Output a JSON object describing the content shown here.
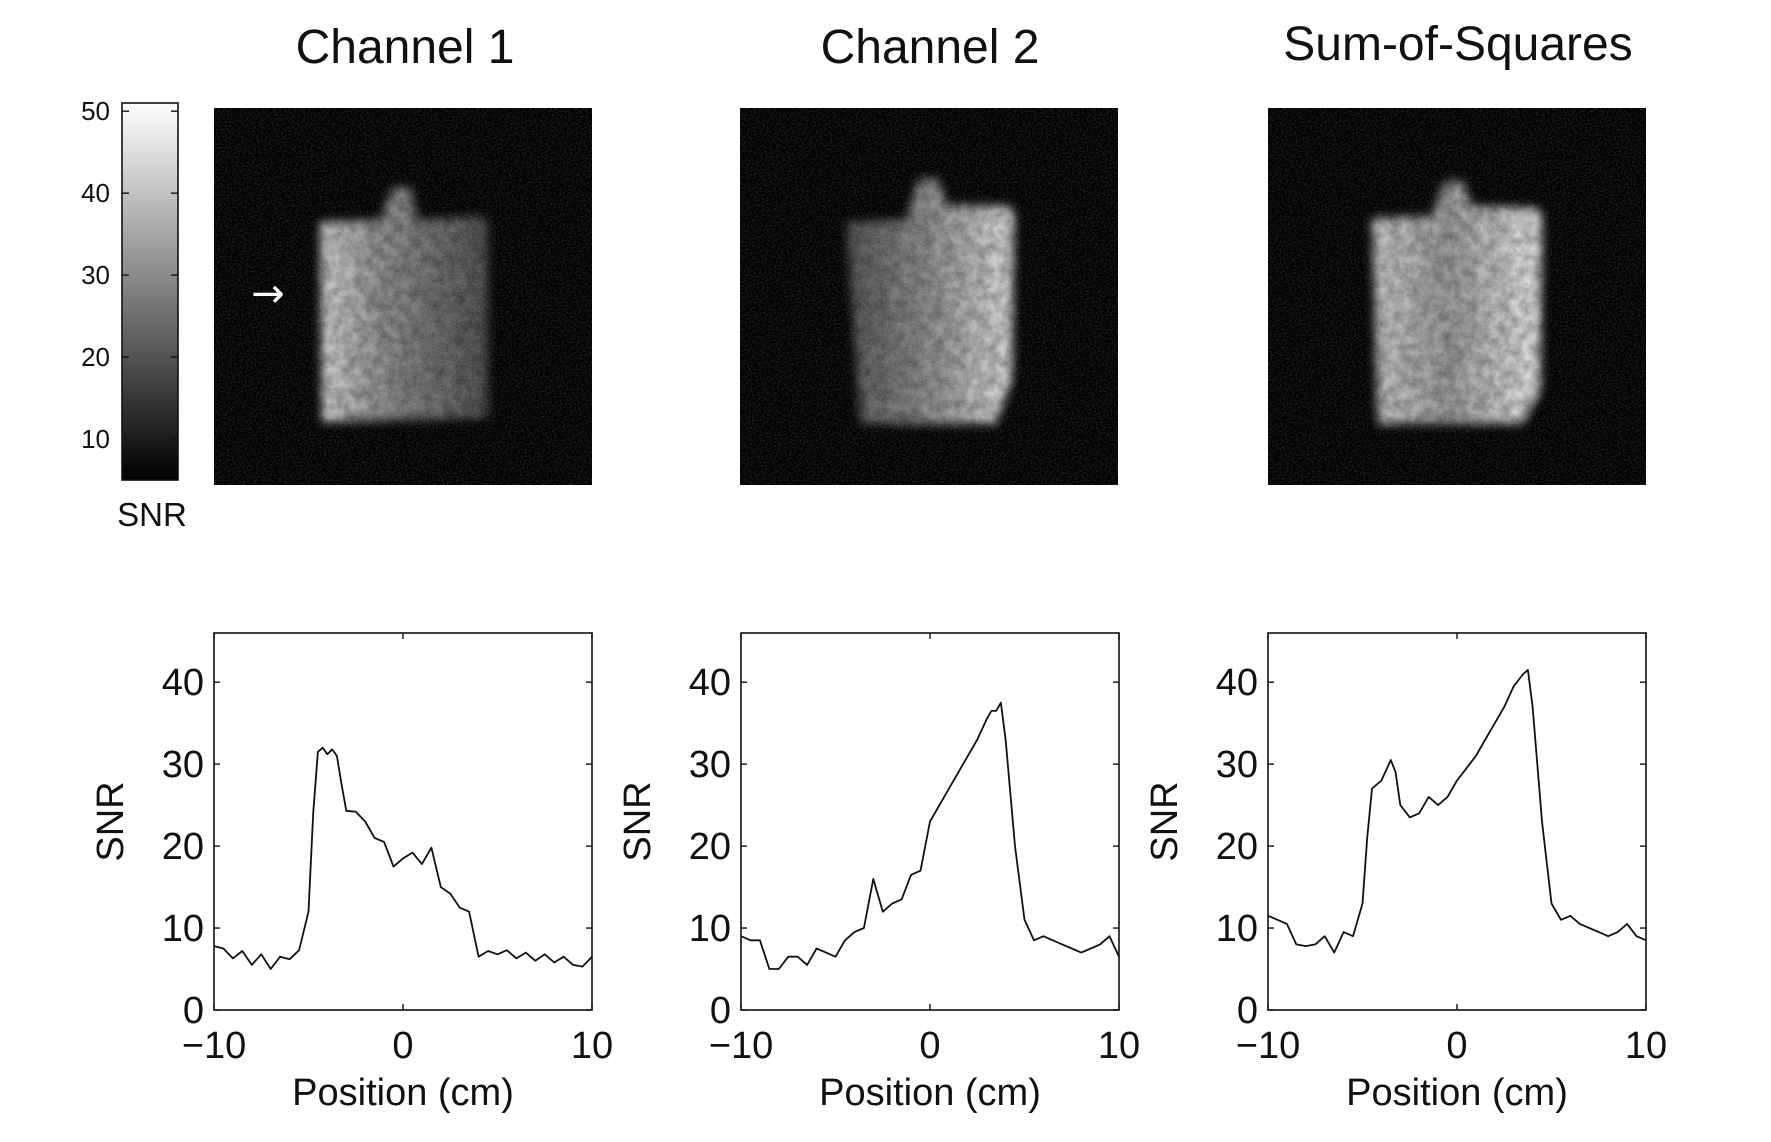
{
  "chart_data": [
    {
      "type": "heatmap",
      "title": "Channel 1",
      "colorbar": {
        "label": "SNR",
        "ticks": [
          10,
          20,
          30,
          40,
          50
        ],
        "range": [
          5,
          51
        ]
      },
      "annotation": "→",
      "bright_edge": "left"
    },
    {
      "type": "heatmap",
      "title": "Channel 2",
      "bright_edge": "right"
    },
    {
      "type": "heatmap",
      "title": "Sum-of-Squares",
      "bright_edge": "both"
    },
    {
      "type": "line",
      "xlabel": "Position (cm)",
      "ylabel": "SNR",
      "xlim": [
        -10,
        10
      ],
      "ylim": [
        0,
        46
      ],
      "xticks": [
        -10,
        0,
        10
      ],
      "xtick_labels": [
        "−10",
        "0",
        "10"
      ],
      "yticks": [
        0,
        10,
        20,
        30,
        40
      ],
      "x": [
        -10,
        -9.5,
        -9,
        -8.5,
        -8,
        -7.5,
        -7,
        -6.5,
        -6,
        -5.5,
        -5,
        -4.75,
        -4.5,
        -4.25,
        -4,
        -3.75,
        -3.5,
        -3.25,
        -3,
        -2.5,
        -2,
        -1.5,
        -1,
        -0.5,
        0,
        0.5,
        1,
        1.5,
        2,
        2.5,
        3,
        3.5,
        4,
        4.5,
        5,
        5.5,
        6,
        6.5,
        7,
        7.5,
        8,
        8.5,
        9,
        9.5,
        10
      ],
      "values": [
        7.8,
        7.5,
        6.3,
        7.2,
        5.5,
        6.8,
        5.0,
        6.5,
        6.2,
        7.3,
        12,
        24,
        31.5,
        32,
        31.2,
        31.8,
        31,
        27.5,
        24.3,
        24.2,
        23,
        21,
        20.5,
        17.5,
        18.5,
        19.2,
        17.8,
        19.8,
        15,
        14.2,
        12.5,
        12,
        6.5,
        7.2,
        6.8,
        7.3,
        6.3,
        7.0,
        6.0,
        6.8,
        5.8,
        6.5,
        5.5,
        5.3,
        6.5
      ]
    },
    {
      "type": "line",
      "xlabel": "Position (cm)",
      "ylabel": "SNR",
      "xlim": [
        -10,
        10
      ],
      "ylim": [
        0,
        46
      ],
      "xticks": [
        -10,
        0,
        10
      ],
      "xtick_labels": [
        "−10",
        "0",
        "10"
      ],
      "yticks": [
        0,
        10,
        20,
        30,
        40
      ],
      "x": [
        -10,
        -9.5,
        -9,
        -8.5,
        -8,
        -7.5,
        -7,
        -6.5,
        -6,
        -5.5,
        -5,
        -4.5,
        -4,
        -3.5,
        -3,
        -2.5,
        -2,
        -1.5,
        -1,
        -0.5,
        0,
        0.5,
        1,
        1.5,
        2,
        2.5,
        3,
        3.25,
        3.5,
        3.75,
        4,
        4.5,
        5,
        5.5,
        6,
        6.5,
        7,
        7.5,
        8,
        8.5,
        9,
        9.5,
        10
      ],
      "values": [
        9.0,
        8.5,
        8.5,
        5.0,
        5.0,
        6.5,
        6.5,
        5.5,
        7.5,
        7.0,
        6.5,
        8.5,
        9.5,
        10,
        16,
        12,
        13,
        13.5,
        16.5,
        17,
        23,
        25,
        27,
        29,
        31,
        33,
        35.5,
        36.5,
        36.5,
        37.5,
        33,
        20,
        11,
        8.5,
        9.0,
        8.5,
        8.0,
        7.5,
        7.0,
        7.5,
        8.0,
        9.0,
        6.5
      ]
    },
    {
      "type": "line",
      "xlabel": "Position (cm)",
      "ylabel": "SNR",
      "xlim": [
        -10,
        10
      ],
      "ylim": [
        0,
        46
      ],
      "xticks": [
        -10,
        0,
        10
      ],
      "xtick_labels": [
        "−10",
        "0",
        "10"
      ],
      "yticks": [
        0,
        10,
        20,
        30,
        40
      ],
      "x": [
        -10,
        -9.5,
        -9,
        -8.5,
        -8,
        -7.5,
        -7,
        -6.5,
        -6,
        -5.5,
        -5,
        -4.75,
        -4.5,
        -4.25,
        -4,
        -3.5,
        -3.25,
        -3,
        -2.5,
        -2,
        -1.5,
        -1,
        -0.5,
        0,
        0.5,
        1,
        1.5,
        2,
        2.5,
        3,
        3.5,
        3.75,
        4,
        4.5,
        5,
        5.5,
        6,
        6.5,
        7,
        7.5,
        8,
        8.5,
        9,
        9.5,
        10
      ],
      "values": [
        11.5,
        11,
        10.5,
        8,
        7.8,
        8.0,
        9.0,
        7.0,
        9.5,
        9.0,
        13,
        21,
        27,
        27.5,
        28,
        30.5,
        29,
        25,
        23.5,
        24,
        26,
        25,
        26,
        28,
        29.5,
        31,
        33,
        35,
        37,
        39.5,
        41,
        41.5,
        37,
        23,
        13,
        11,
        11.5,
        10.5,
        10,
        9.5,
        9,
        9.5,
        10.5,
        9.0,
        8.5
      ]
    }
  ]
}
